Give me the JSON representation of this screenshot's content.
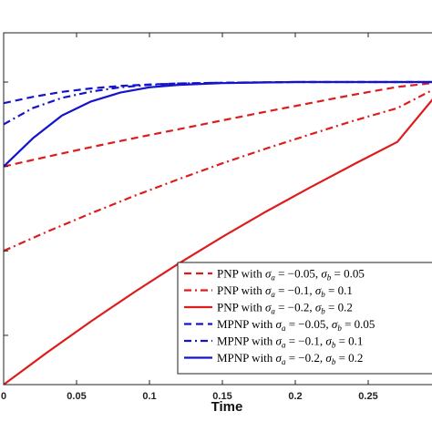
{
  "chart_data": {
    "type": "line",
    "title": "",
    "xlabel": "Time",
    "ylabel": "",
    "xlim": [
      0,
      0.3
    ],
    "ylim": [
      0,
      1
    ],
    "x_ticks": [
      0,
      0.05,
      0.1,
      0.15,
      0.2,
      0.25
    ],
    "x_tick_labels": [
      "0",
      "0.05",
      "0.1",
      "0.15",
      "0.2",
      "0.25"
    ],
    "y_ticks": [
      0.14,
      0.38,
      0.62,
      0.86
    ],
    "legend_position": "bottom-right",
    "grid": false,
    "series": [
      {
        "name": "PNP with σa = −0.05, σb = 0.05",
        "legend_tex": [
          "PNP with ",
          "σ",
          "a",
          " = −0.05, ",
          "σ",
          "b",
          " = 0.05"
        ],
        "color": "#dd1c1c",
        "style": "dashed",
        "x": [
          0,
          0.03,
          0.06,
          0.09,
          0.12,
          0.15,
          0.18,
          0.21,
          0.24,
          0.27,
          0.3
        ],
        "y": [
          0.62,
          0.648,
          0.675,
          0.701,
          0.726,
          0.751,
          0.776,
          0.8,
          0.824,
          0.846,
          0.86
        ]
      },
      {
        "name": "PNP with σa = −0.1, σb = 0.1",
        "legend_tex": [
          "PNP with ",
          "σ",
          "a",
          " = −0.1, ",
          "σ",
          "b",
          " = 0.1"
        ],
        "color": "#dd1c1c",
        "style": "dashdot",
        "x": [
          0,
          0.03,
          0.06,
          0.09,
          0.12,
          0.15,
          0.18,
          0.21,
          0.24,
          0.27,
          0.3
        ],
        "y": [
          0.38,
          0.435,
          0.487,
          0.537,
          0.584,
          0.629,
          0.671,
          0.711,
          0.75,
          0.786,
          0.85
        ]
      },
      {
        "name": "PNP with σa = −0.2, σb = 0.2",
        "legend_tex": [
          "PNP with ",
          "σ",
          "a",
          " = −0.2, ",
          "σ",
          "b",
          " = 0.2"
        ],
        "color": "#dd1c1c",
        "style": "solid",
        "x": [
          0,
          0.03,
          0.06,
          0.09,
          0.12,
          0.15,
          0.18,
          0.21,
          0.24,
          0.27,
          0.3
        ],
        "y": [
          0.0,
          0.092,
          0.18,
          0.264,
          0.344,
          0.42,
          0.492,
          0.56,
          0.626,
          0.69,
          0.84
        ]
      },
      {
        "name": "MPNP with σa = −0.05, σb = 0.05",
        "legend_tex": [
          "MPNP with ",
          "σ",
          "a",
          " = −0.05, ",
          "σ",
          "b",
          " = 0.05"
        ],
        "color": "#1414cc",
        "style": "dashed",
        "x": [
          0,
          0.02,
          0.04,
          0.06,
          0.08,
          0.1,
          0.12,
          0.15,
          0.2,
          0.25,
          0.3
        ],
        "y": [
          0.8,
          0.818,
          0.832,
          0.842,
          0.849,
          0.853,
          0.856,
          0.858,
          0.86,
          0.86,
          0.86
        ]
      },
      {
        "name": "MPNP with σa = −0.1, σb = 0.1",
        "legend_tex": [
          "MPNP with ",
          "σ",
          "a",
          " = −0.1, ",
          "σ",
          "b",
          " = 0.1"
        ],
        "color": "#1414cc",
        "style": "dashdot",
        "x": [
          0,
          0.02,
          0.04,
          0.06,
          0.08,
          0.1,
          0.12,
          0.15,
          0.2,
          0.25,
          0.3
        ],
        "y": [
          0.74,
          0.786,
          0.815,
          0.833,
          0.845,
          0.852,
          0.856,
          0.858,
          0.86,
          0.86,
          0.86
        ]
      },
      {
        "name": "MPNP with σa = −0.2, σb = 0.2",
        "legend_tex": [
          "MPNP with ",
          "σ",
          "a",
          " = −0.2, ",
          "σ",
          "b",
          " = 0.2"
        ],
        "color": "#1414cc",
        "style": "solid",
        "x": [
          0,
          0.02,
          0.04,
          0.06,
          0.08,
          0.1,
          0.12,
          0.15,
          0.2,
          0.25,
          0.3
        ],
        "y": [
          0.62,
          0.7,
          0.765,
          0.805,
          0.83,
          0.845,
          0.852,
          0.857,
          0.86,
          0.86,
          0.86
        ]
      }
    ]
  }
}
